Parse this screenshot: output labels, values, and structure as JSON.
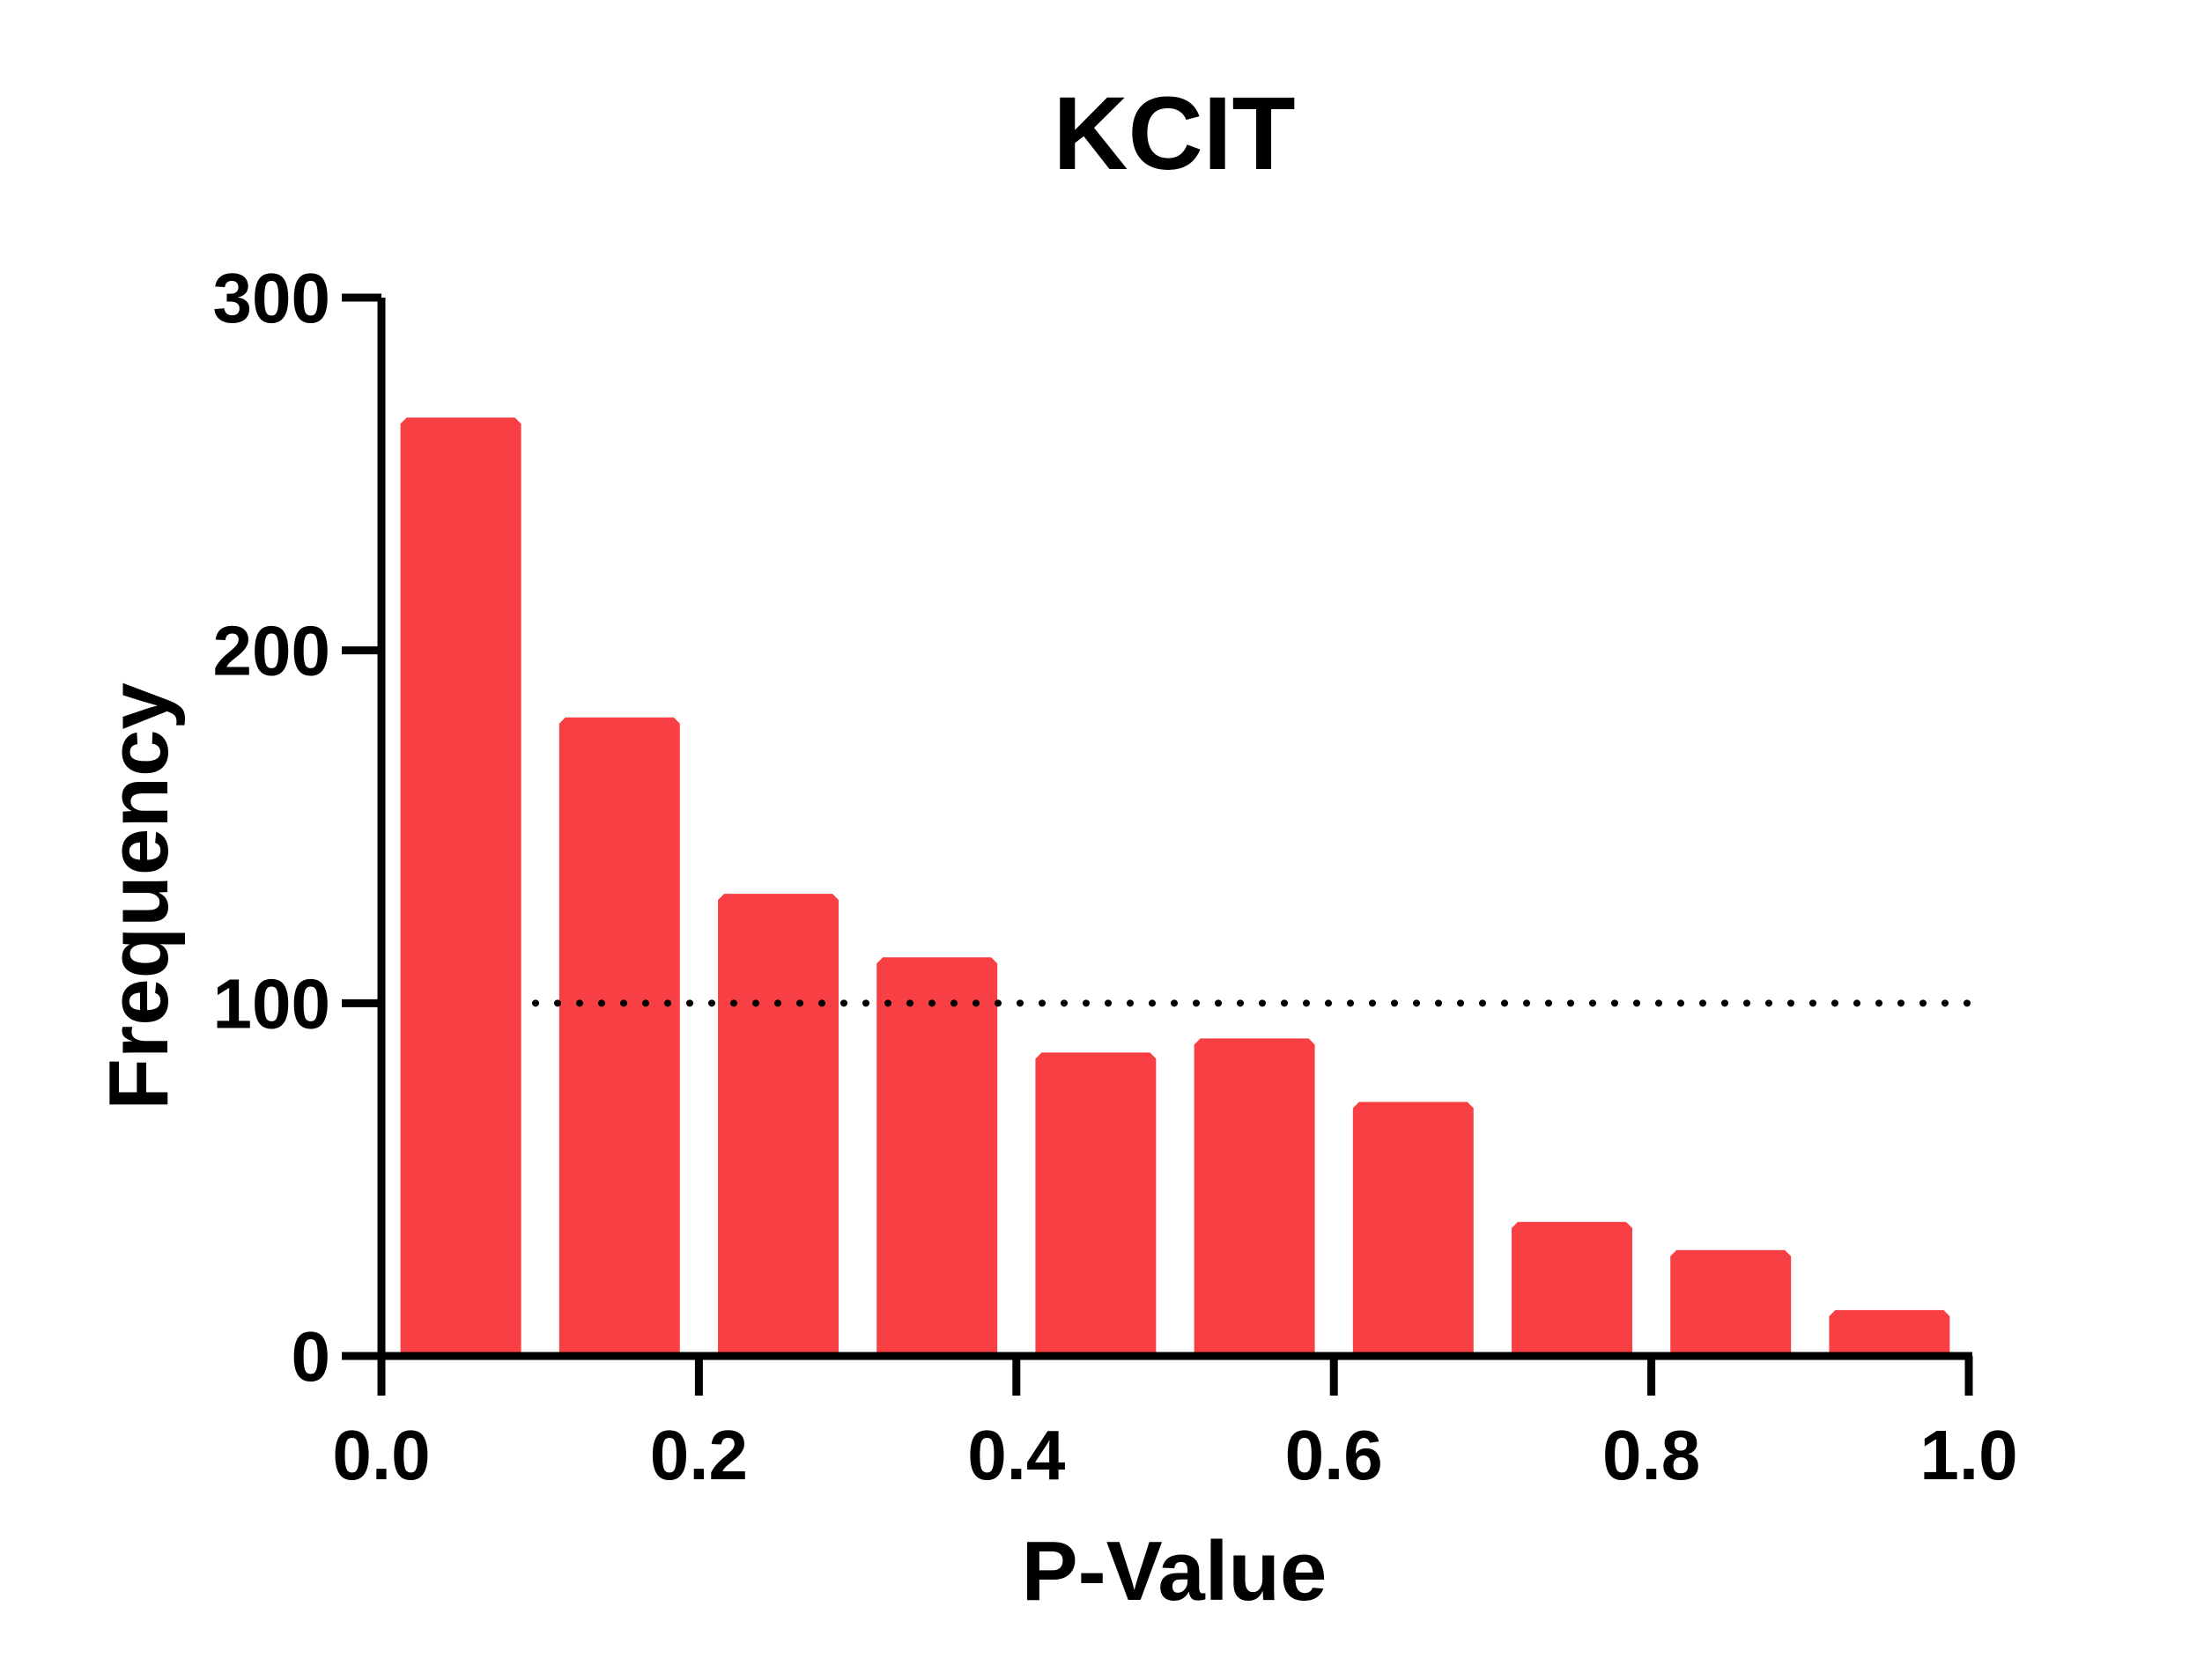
{
  "chart_data": {
    "type": "bar",
    "title": "KCIT",
    "xlabel": "P-Value",
    "ylabel": "Frequency",
    "xlim": [
      0.0,
      1.0
    ],
    "ylim": [
      0,
      300
    ],
    "bin_width": 0.1,
    "x_ticks": [
      "0.0",
      "0.2",
      "0.4",
      "0.6",
      "0.8",
      "1.0"
    ],
    "y_ticks": [
      "0",
      "100",
      "200",
      "300"
    ],
    "x_tick_values": [
      0.0,
      0.2,
      0.4,
      0.6,
      0.8,
      1.0
    ],
    "y_tick_values": [
      0,
      100,
      200,
      300
    ],
    "categories": [
      "0.0-0.1",
      "0.1-0.2",
      "0.2-0.3",
      "0.3-0.4",
      "0.4-0.5",
      "0.5-0.6",
      "0.6-0.7",
      "0.7-0.8",
      "0.8-0.9",
      "0.9-1.0"
    ],
    "bin_starts": [
      0.0,
      0.1,
      0.2,
      0.3,
      0.4,
      0.5,
      0.6,
      0.7,
      0.8,
      0.9
    ],
    "values": [
      266,
      181,
      131,
      113,
      86,
      90,
      72,
      38,
      30,
      13
    ],
    "reference_line": {
      "y": 100,
      "style": "dotted"
    },
    "bar_color": "#f84044",
    "grid": false
  }
}
